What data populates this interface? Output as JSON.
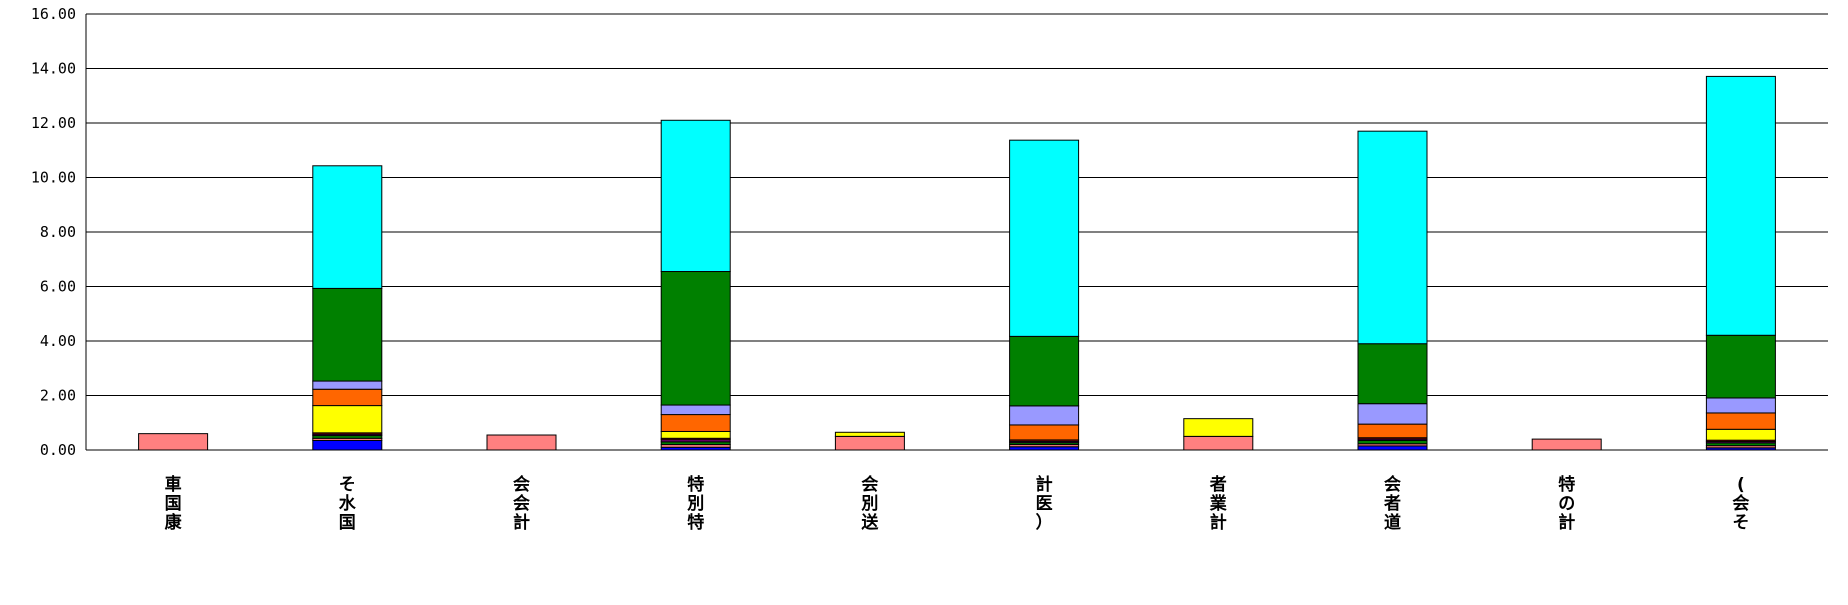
{
  "chart_data": {
    "type": "bar",
    "stacked": true,
    "grid": true,
    "ylim": [
      0,
      16
    ],
    "yticks": [
      "0.00",
      "2.00",
      "4.00",
      "6.00",
      "8.00",
      "10.00",
      "12.00",
      "14.00",
      "16.00"
    ],
    "categories": [
      "車国康",
      "そ水国",
      "会会計",
      "特別特",
      "会別送",
      "計医）",
      "者業計",
      "会者道",
      "特の計",
      "(会そ"
    ],
    "series": [
      {
        "color": "#0000ff",
        "values": [
          0,
          0.35,
          0,
          0.1,
          0,
          0.12,
          0,
          0.15,
          0,
          0.08
        ]
      },
      {
        "color": "#ff8080",
        "values": [
          0.6,
          0.08,
          0.55,
          0.1,
          0.5,
          0.08,
          0.5,
          0.08,
          0.4,
          0.08
        ]
      },
      {
        "color": "#008000",
        "values": [
          0,
          0.1,
          0,
          0.1,
          0,
          0.07,
          0,
          0.12,
          0,
          0.1
        ]
      },
      {
        "color": "#800080",
        "values": [
          0,
          0.05,
          0,
          0.08,
          0,
          0.05,
          0,
          0.05,
          0,
          0.05
        ]
      },
      {
        "color": "#ff0000",
        "values": [
          0,
          0.05,
          0,
          0.05,
          0,
          0.05,
          0,
          0.05,
          0,
          0.05
        ]
      },
      {
        "color": "#ffff00",
        "values": [
          0,
          1.0,
          0,
          0.25,
          0.15,
          0,
          0.65,
          0,
          0,
          0.4
        ]
      },
      {
        "color": "#ff6600",
        "values": [
          0,
          0.6,
          0,
          0.62,
          0,
          0.55,
          0,
          0.5,
          0,
          0.6
        ]
      },
      {
        "color": "#9999ff",
        "values": [
          0,
          0.3,
          0,
          0.35,
          0,
          0.7,
          0,
          0.75,
          0,
          0.55
        ]
      },
      {
        "color": "#008000",
        "values": [
          0,
          3.4,
          0,
          4.9,
          0,
          2.55,
          0,
          2.2,
          0,
          2.3
        ]
      },
      {
        "color": "#00ffff",
        "values": [
          0,
          4.5,
          0,
          5.55,
          0,
          7.2,
          0,
          7.8,
          0,
          9.5
        ]
      }
    ]
  }
}
